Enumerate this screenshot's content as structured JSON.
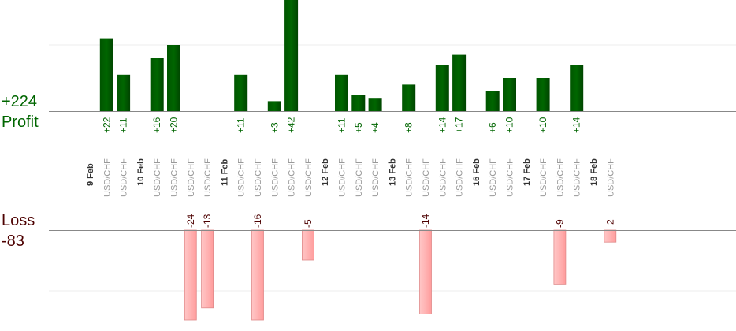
{
  "summary": {
    "profit_total": "+224",
    "profit_label": "Profit",
    "loss_label": "Loss",
    "loss_total": "-83"
  },
  "colors": {
    "profit_bar": "#006600",
    "profit_text": "#006600",
    "loss_bar": "#ffb3b3",
    "loss_text": "#4d0000",
    "axis": "#888888",
    "grid": "#eeeeee",
    "date_text": "#333333",
    "symbol_text": "#999999"
  },
  "chart_data": {
    "type": "bar",
    "y_profit_range": [
      0,
      20
    ],
    "y_loss_range": [
      -14,
      0
    ],
    "trades": [
      {
        "date": "9 Feb"
      },
      {
        "symbol": "USD/CHF",
        "value": 22
      },
      {
        "symbol": "USD/CHF",
        "value": 11
      },
      {
        "date": "10 Feb"
      },
      {
        "symbol": "USD/CHF",
        "value": 16
      },
      {
        "symbol": "USD/CHF",
        "value": 20
      },
      {
        "symbol": "USD/CHF",
        "value": -24
      },
      {
        "symbol": "USD/CHF",
        "value": -13
      },
      {
        "date": "11 Feb"
      },
      {
        "symbol": "USD/CHF",
        "value": 11
      },
      {
        "symbol": "USD/CHF",
        "value": -16
      },
      {
        "symbol": "USD/CHF",
        "value": 3
      },
      {
        "symbol": "USD/CHF",
        "value": 42
      },
      {
        "symbol": "USD/CHF",
        "value": -5
      },
      {
        "date": "12 Feb"
      },
      {
        "symbol": "USD/CHF",
        "value": 11
      },
      {
        "symbol": "USD/CHF",
        "value": 5
      },
      {
        "symbol": "USD/CHF",
        "value": 4
      },
      {
        "date": "13 Feb"
      },
      {
        "symbol": "USD/CHF",
        "value": 8
      },
      {
        "symbol": "USD/CHF",
        "value": -14
      },
      {
        "symbol": "USD/CHF",
        "value": 14
      },
      {
        "symbol": "USD/CHF",
        "value": 17
      },
      {
        "date": "16 Feb"
      },
      {
        "symbol": "USD/CHF",
        "value": 6
      },
      {
        "symbol": "USD/CHF",
        "value": 10
      },
      {
        "date": "17 Feb"
      },
      {
        "symbol": "USD/CHF",
        "value": 10
      },
      {
        "symbol": "USD/CHF",
        "value": -9
      },
      {
        "symbol": "USD/CHF",
        "value": 14
      },
      {
        "date": "18 Feb"
      },
      {
        "symbol": "USD/CHF",
        "value": -2
      }
    ]
  }
}
